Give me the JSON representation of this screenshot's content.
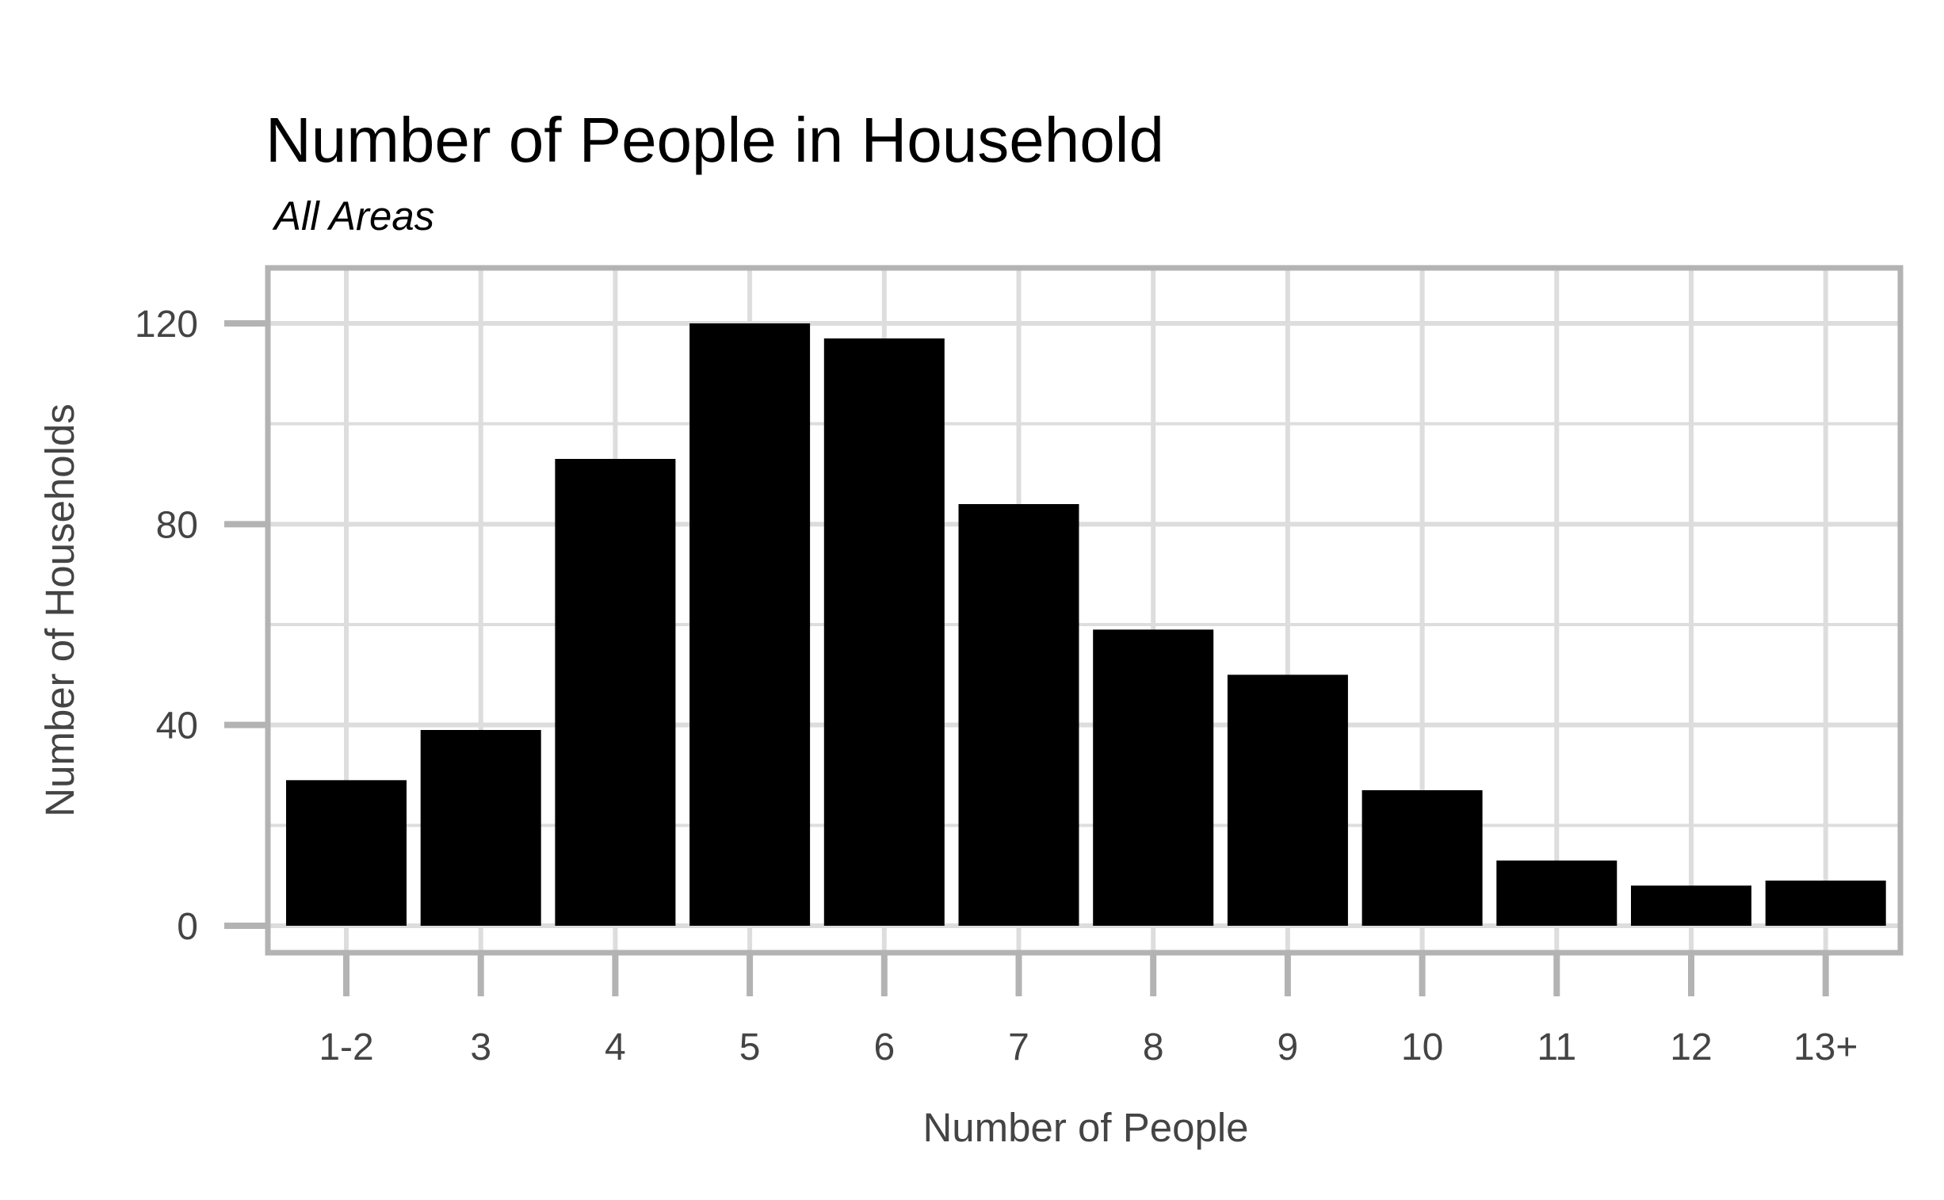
{
  "chart_data": {
    "type": "bar",
    "title": "Number of People in Household",
    "subtitle": "All Areas",
    "xlabel": "Number of People",
    "ylabel": "Number of Households",
    "categories": [
      "1-2",
      "3",
      "4",
      "5",
      "6",
      "7",
      "8",
      "9",
      "10",
      "11",
      "12",
      "13+"
    ],
    "values": [
      29,
      39,
      93,
      120,
      117,
      84,
      59,
      50,
      27,
      13,
      8,
      9
    ],
    "ylim": [
      0,
      130
    ],
    "yticks": [
      0,
      40,
      80,
      120
    ],
    "grid": true,
    "legend": "none",
    "colors": {
      "bar": "#000000",
      "grid": "#dddddd",
      "frame": "#b3b3b3",
      "tick_text": "#444444"
    }
  }
}
